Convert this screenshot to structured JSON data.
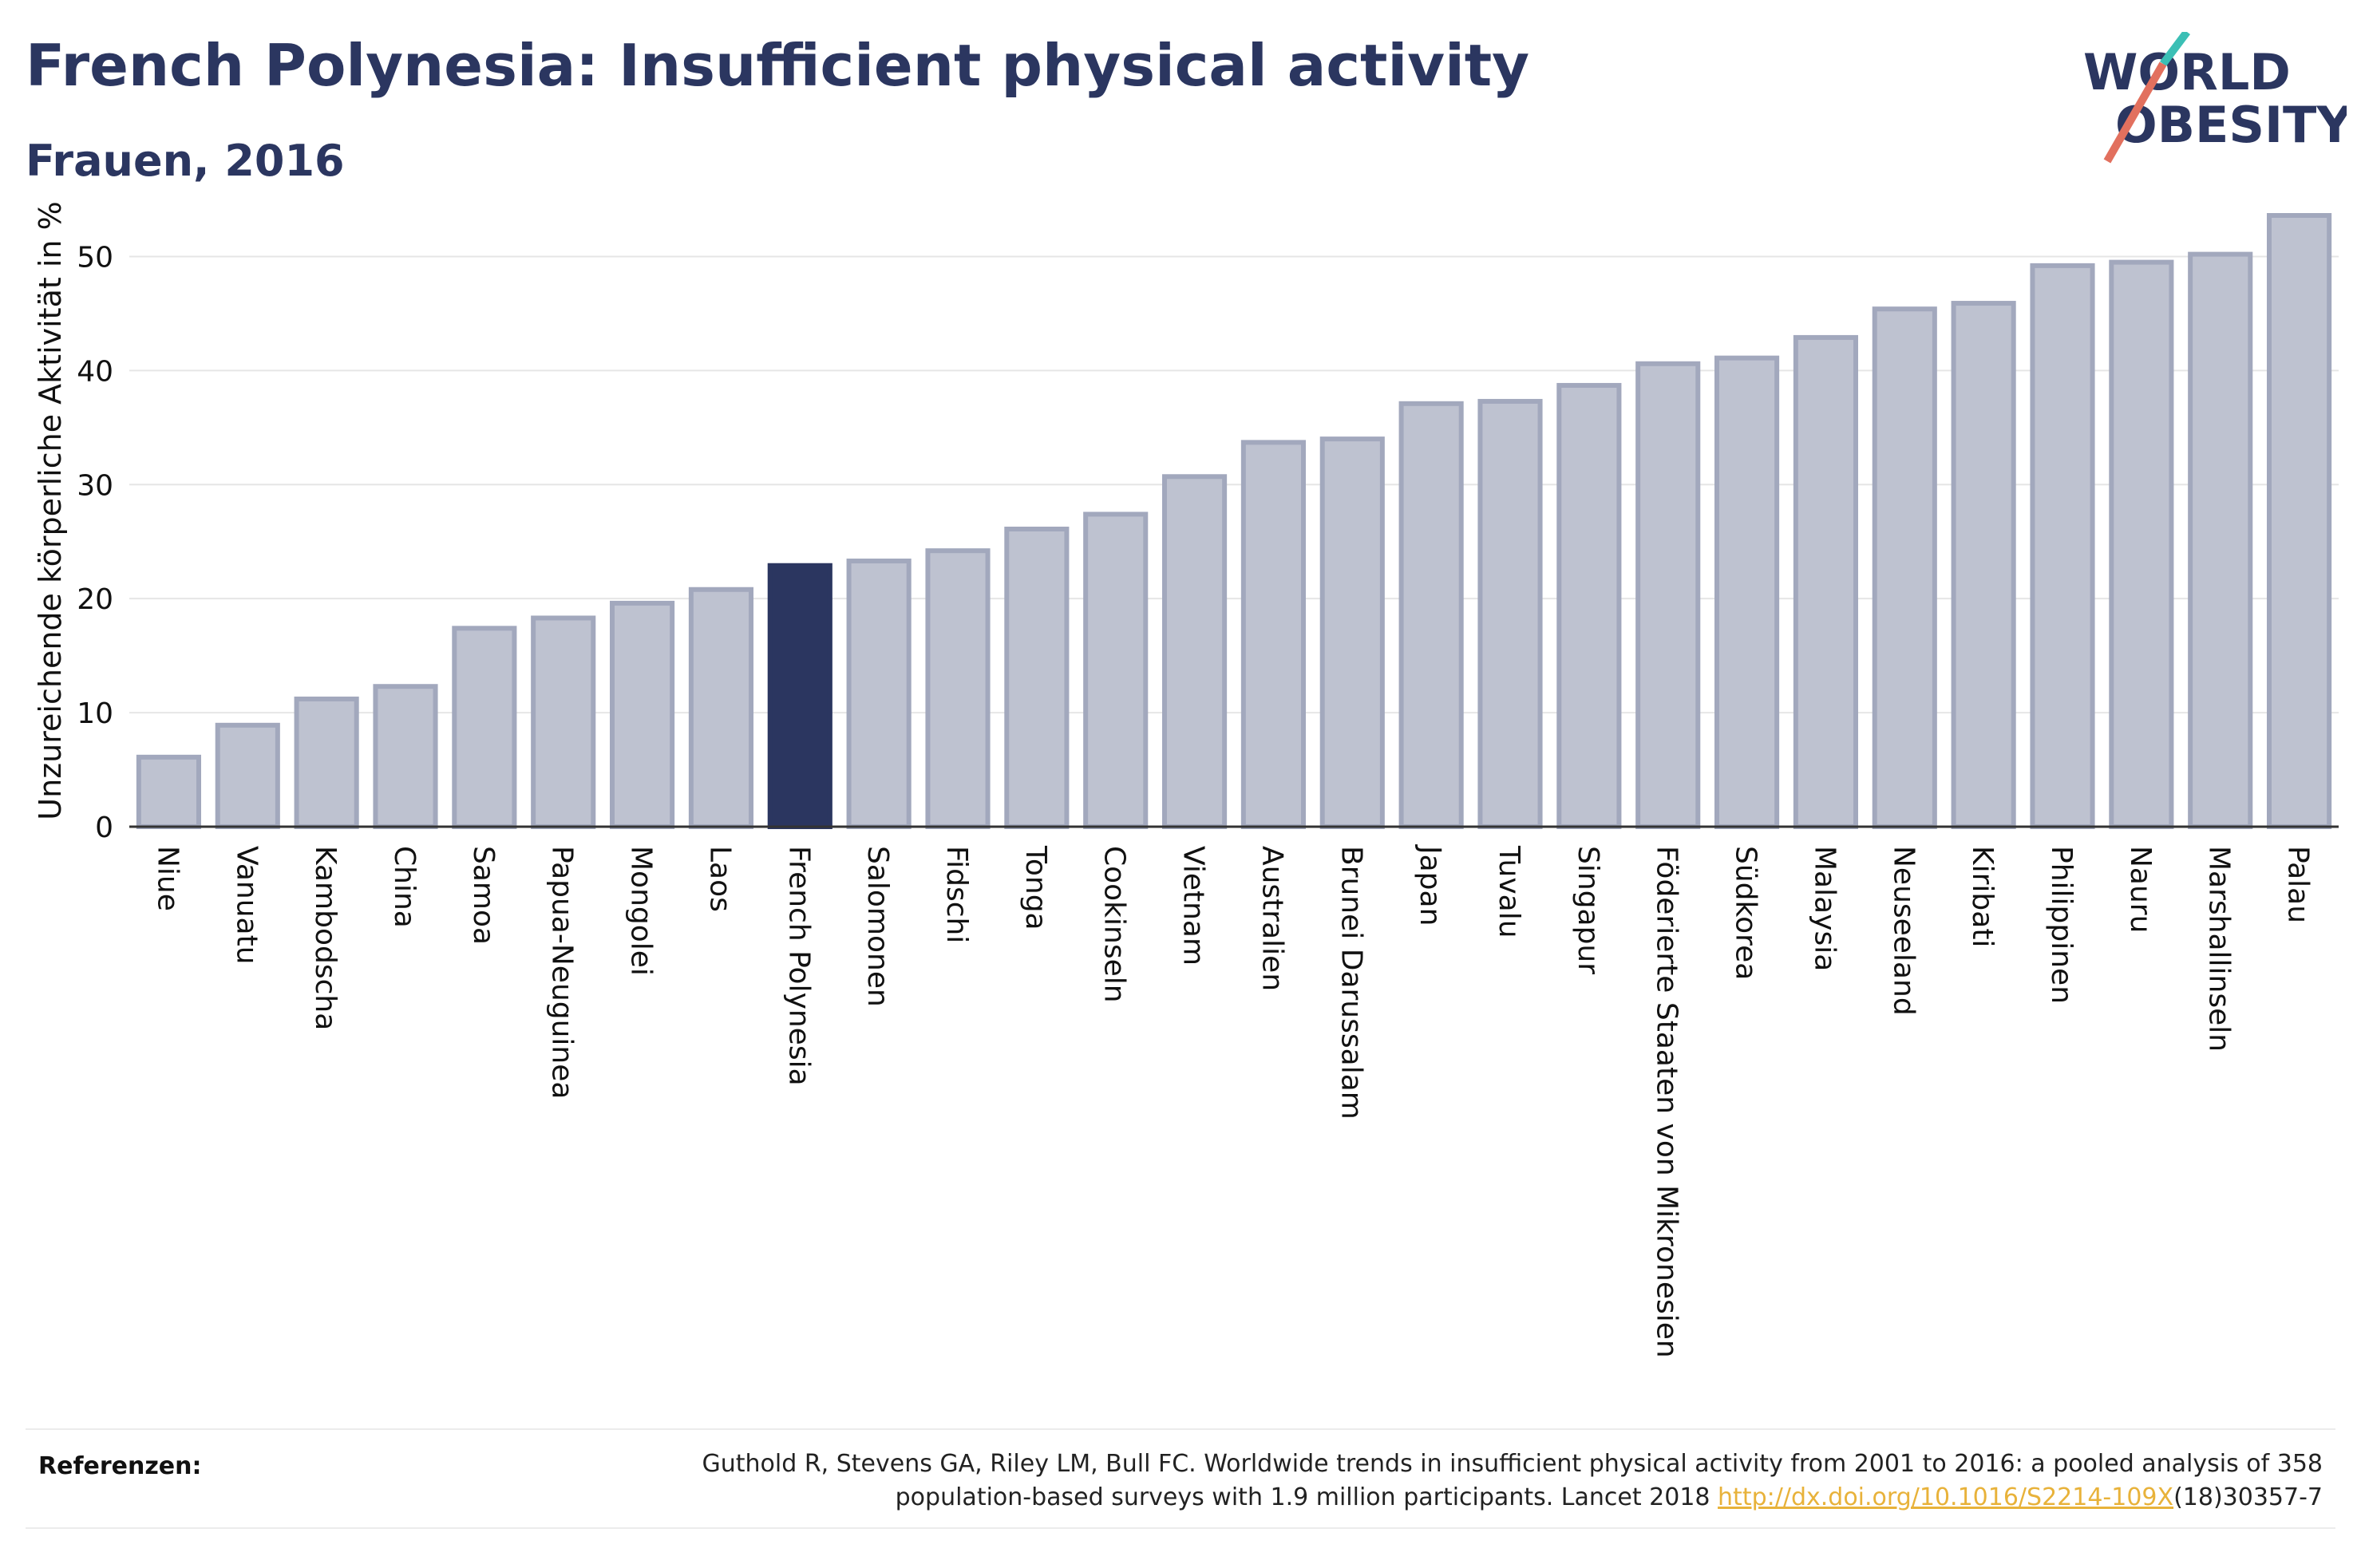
{
  "header": {
    "title": "French Polynesia: Insufficient physical activity",
    "subtitle": "Frauen, 2016"
  },
  "logo": {
    "line1": "WORLD",
    "line2": "OBESITY"
  },
  "colors": {
    "highlight": "#2b3660",
    "bar_fill": "#bec2d0",
    "bar_stroke": "#a2a8bd",
    "grid": "#e6e6e6",
    "axis": "#333333"
  },
  "chart_data": {
    "type": "bar",
    "ylabel": "Unzureichende körperliche Aktivität in %",
    "ylim": [
      0,
      55
    ],
    "yticks": [
      0,
      10,
      20,
      30,
      40,
      50
    ],
    "grid": true,
    "highlight": "French Polynesia",
    "categories": [
      "Niue",
      "Vanuatu",
      "Kambodscha",
      "China",
      "Samoa",
      "Papua-Neuguinea",
      "Mongolei",
      "Laos",
      "French Polynesia",
      "Salomonen",
      "Fidschi",
      "Tonga",
      "Cookinseln",
      "Vietnam",
      "Australien",
      "Brunei Darussalam",
      "Japan",
      "Tuvalu",
      "Singapur",
      "Föderierte Staaten von Mikronesien",
      "Südkorea",
      "Malaysia",
      "Neuseeland",
      "Kiribati",
      "Philippinen",
      "Nauru",
      "Marshallinseln",
      "Palau"
    ],
    "values": [
      6.1,
      8.9,
      11.2,
      12.3,
      17.4,
      18.3,
      19.6,
      20.8,
      22.9,
      23.3,
      24.2,
      26.1,
      27.4,
      30.7,
      33.7,
      34.0,
      37.1,
      37.3,
      38.7,
      40.6,
      41.1,
      42.9,
      45.4,
      45.9,
      49.2,
      49.5,
      50.2,
      53.6
    ]
  },
  "references": {
    "label": "Referenzen:",
    "line1": "Guthold R, Stevens GA, Riley LM, Bull FC. Worldwide trends in insufficient physical activity from 2001 to 2016: a pooled analysis of 358",
    "line2_prefix": "population-based surveys with 1.9 million participants. Lancet 2018 ",
    "link_text": "http://dx.doi.org/10.1016/S2214-109X",
    "line2_suffix": "(18)30357-7"
  }
}
